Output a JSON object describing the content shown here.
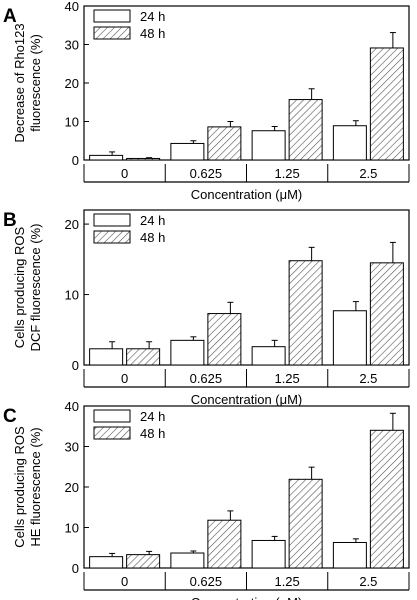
{
  "chart_data": [
    {
      "type": "bar",
      "panel": "A",
      "ylabel_lines": [
        "Decrease of Rho123",
        "fluorescence (%)"
      ],
      "xlabel": "Concentration (μM)",
      "categories": [
        "0",
        "0.625",
        "1.25",
        "2.5"
      ],
      "ylim": [
        0,
        40
      ],
      "yticks": [
        0,
        10,
        20,
        30,
        40
      ],
      "series": [
        {
          "name": "24 h",
          "values": [
            1.2,
            4.3,
            7.6,
            8.9
          ],
          "errors": [
            0.9,
            0.7,
            1.1,
            1.3
          ],
          "fill": "white"
        },
        {
          "name": "48 h",
          "values": [
            0.4,
            8.6,
            15.7,
            29.1
          ],
          "errors": [
            0.2,
            1.4,
            2.8,
            4.0
          ],
          "fill": "hatched"
        }
      ],
      "legend": "top-left"
    },
    {
      "type": "bar",
      "panel": "B",
      "ylabel_lines": [
        "Cells producing ROS",
        "DCF fluorescence (%)"
      ],
      "xlabel": "Concentration (μM)",
      "categories": [
        "0",
        "0.625",
        "1.25",
        "2.5"
      ],
      "ylim": [
        0,
        22
      ],
      "yticks": [
        0,
        10,
        20
      ],
      "series": [
        {
          "name": "24 h",
          "values": [
            2.3,
            3.5,
            2.6,
            7.7
          ],
          "errors": [
            1.0,
            0.5,
            0.9,
            1.3
          ],
          "fill": "white"
        },
        {
          "name": "48 h",
          "values": [
            2.3,
            7.3,
            14.8,
            14.5
          ],
          "errors": [
            1.0,
            1.6,
            1.9,
            2.9
          ],
          "fill": "hatched"
        }
      ],
      "legend": "top-left"
    },
    {
      "type": "bar",
      "panel": "C",
      "ylabel_lines": [
        "Cells producing ROS",
        "HE fluorescence (%)"
      ],
      "xlabel": "Concentration (μM)",
      "categories": [
        "0",
        "0.625",
        "1.25",
        "2.5"
      ],
      "ylim": [
        0,
        40
      ],
      "yticks": [
        0,
        10,
        20,
        30,
        40
      ],
      "series": [
        {
          "name": "24 h",
          "values": [
            2.8,
            3.7,
            6.8,
            6.3
          ],
          "errors": [
            0.8,
            0.5,
            1.0,
            0.9
          ],
          "fill": "white"
        },
        {
          "name": "48 h",
          "values": [
            3.3,
            11.8,
            21.9,
            34.0
          ],
          "errors": [
            0.8,
            2.3,
            3.0,
            4.2
          ],
          "fill": "hatched"
        }
      ],
      "legend": "top-left"
    }
  ]
}
